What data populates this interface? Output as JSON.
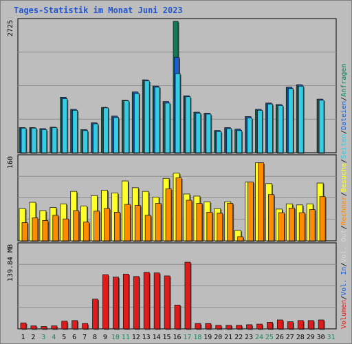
{
  "chart_data": {
    "type": "bar",
    "title": "Tages-Statistik im Monat Juni 2023",
    "days": [
      "1",
      "2",
      "3",
      "4",
      "5",
      "6",
      "7",
      "8",
      "9",
      "10",
      "11",
      "12",
      "13",
      "14",
      "15",
      "16",
      "17",
      "18",
      "19",
      "20",
      "21",
      "22",
      "23",
      "24",
      "25",
      "26",
      "27",
      "28",
      "29",
      "30",
      "31"
    ],
    "weekend_days": [
      "3",
      "4",
      "10",
      "11",
      "17",
      "18",
      "24",
      "25",
      "31"
    ],
    "colors": {
      "title": "#2155cf",
      "anfragen": "#0f7d5b",
      "dateien": "#1c5fd0",
      "seiten": "#35cde4",
      "besuche": "#ffff2a",
      "rechner": "#ff8c00",
      "volumen": "#e01b1b",
      "weekend_label": "#1b8a5a",
      "weekday_label": "#000000"
    },
    "panels": [
      {
        "name": "top",
        "ymax_label": "2725",
        "ymax": 2725,
        "series": [
          {
            "name": "Anfragen",
            "values": [
              520,
              520,
              500,
              530,
              1150,
              900,
              480,
              620,
              940,
              760,
              1090,
              1260,
              1510,
              1380,
              1060,
              2725,
              1180,
              840,
              820,
              460,
              520,
              490,
              750,
              900,
              1030,
              1000,
              1360,
              1410,
              0,
              1110
            ]
          },
          {
            "name": "Dateien",
            "values": [
              520,
              520,
              500,
              530,
              1150,
              900,
              480,
              620,
              940,
              760,
              1090,
              1260,
              1510,
              1380,
              1060,
              1980,
              1180,
              840,
              820,
              460,
              520,
              490,
              750,
              900,
              1030,
              1000,
              1360,
              1410,
              0,
              1110
            ]
          },
          {
            "name": "Seiten",
            "values": [
              510,
              510,
              480,
              520,
              1120,
              880,
              460,
              600,
              930,
              730,
              1080,
              1230,
              1490,
              1360,
              1030,
              1640,
              1160,
              820,
              800,
              440,
              500,
              460,
              720,
              880,
              1010,
              980,
              1330,
              1380,
              0,
              1090
            ]
          }
        ]
      },
      {
        "name": "middle",
        "ymax_label": "160",
        "ymax": 160,
        "series": [
          {
            "name": "Besuche",
            "values": [
              62,
              74,
              58,
              64,
              71,
              95,
              67,
              87,
              97,
              92,
              115,
              102,
              95,
              84,
              120,
              130,
              90,
              86,
              75,
              62,
              75,
              20,
              113,
              150,
              110,
              61,
              71,
              69,
              71,
              111
            ]
          },
          {
            "name": "Rechner",
            "values": [
              35,
              44,
              39,
              49,
              42,
              58,
              36,
              57,
              62,
              55,
              70,
              68,
              49,
              72,
              100,
              121,
              78,
              72,
              55,
              53,
              72,
              8,
              113,
              150,
              89,
              54,
              63,
              54,
              60,
              85
            ]
          }
        ]
      },
      {
        "name": "bottom",
        "ymax_label": "139.84 MB",
        "ymax": 139.84,
        "series": [
          {
            "name": "Volumen",
            "values": [
              10,
              5,
              4,
              5,
              13,
              14,
              9,
              50,
              91,
              87,
              92,
              88,
              95,
              94,
              89,
              40,
              112,
              9,
              9,
              6,
              6,
              6,
              7,
              8,
              11,
              15,
              12,
              14,
              14,
              15
            ]
          }
        ]
      }
    ],
    "right_labels": {
      "top": [
        {
          "text": "Anfragen",
          "color": "#0f7d5b"
        },
        {
          "text": "/",
          "color": "#000000"
        },
        {
          "text": "Dateien",
          "color": "#1c5fd0"
        },
        {
          "text": "/",
          "color": "#000000"
        },
        {
          "text": "Seiten",
          "color": "#35cde4"
        },
        {
          "text": "/",
          "color": "#000000"
        },
        {
          "text": "Besuche",
          "color": "#ffff2a"
        },
        {
          "text": "/",
          "color": "#000000"
        },
        {
          "text": "Rechner",
          "color": "#ff8c00"
        },
        {
          "text": "/",
          "color": "#000000"
        },
        {
          "text": "Vol. Out",
          "color": "#d8d8d8"
        },
        {
          "text": "/",
          "color": "#000000"
        },
        {
          "text": "Vol. In",
          "color": "#1c5fd0"
        },
        {
          "text": "/",
          "color": "#000000"
        },
        {
          "text": "Volumen",
          "color": "#e01b1b"
        }
      ]
    }
  }
}
